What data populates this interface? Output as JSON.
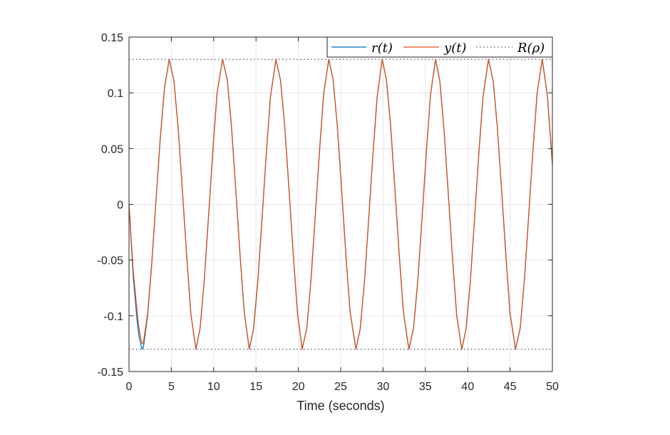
{
  "chart_data": {
    "type": "line",
    "title": "",
    "xlabel": "Time (seconds)",
    "ylabel": "",
    "xlim": [
      0,
      50
    ],
    "ylim": [
      -0.15,
      0.15
    ],
    "x_ticks": [
      0,
      5,
      10,
      15,
      20,
      25,
      30,
      35,
      40,
      45,
      50
    ],
    "x_tick_labels": [
      "0",
      "5",
      "10",
      "15",
      "20",
      "25",
      "30",
      "35",
      "40",
      "45",
      "50"
    ],
    "y_ticks": [
      0.15,
      0.1,
      0.05,
      0,
      -0.05,
      -0.1,
      -0.15
    ],
    "y_tick_labels": [
      "0.15",
      "0.1",
      "0.05",
      "0",
      "-0.05",
      "-0.1",
      "-0.15"
    ],
    "grid": true,
    "legend_position": "top-right",
    "series": [
      {
        "name": "r(t)",
        "color": "#0072BD",
        "style": "solid",
        "x": [
          0,
          0.5,
          1.0,
          1.2,
          1.4,
          1.55,
          1.7,
          2.2,
          2.7,
          3.2,
          3.7,
          4.2,
          4.75,
          5.3,
          5.8,
          6.3,
          6.8,
          7.3,
          7.9,
          8.4,
          8.9,
          9.4,
          9.9,
          10.4,
          11.05,
          11.6,
          12.1,
          12.6,
          13.1,
          13.6,
          14.2,
          14.7,
          15.2,
          15.7,
          16.2,
          16.7,
          17.35,
          17.9,
          18.4,
          18.9,
          19.4,
          19.9,
          20.45,
          21.0,
          21.5,
          22.0,
          22.5,
          23.0,
          23.6,
          24.1,
          24.6,
          25.1,
          25.6,
          26.1,
          26.8,
          27.3,
          27.8,
          28.3,
          28.8,
          29.3,
          29.9,
          30.4,
          30.9,
          31.4,
          31.9,
          32.4,
          33.05,
          33.6,
          34.1,
          34.6,
          35.1,
          35.6,
          36.2,
          36.7,
          37.2,
          37.7,
          38.2,
          38.7,
          39.3,
          39.8,
          40.3,
          40.8,
          41.3,
          41.8,
          42.45,
          43.0,
          43.5,
          44.0,
          44.5,
          45.0,
          45.65,
          46.2,
          46.7,
          47.2,
          47.7,
          48.2,
          48.8,
          49.4,
          50.0
        ],
        "y": [
          0,
          -0.065,
          -0.108,
          -0.119,
          -0.126,
          -0.13,
          -0.128,
          -0.1,
          -0.052,
          0.005,
          0.06,
          0.105,
          0.13,
          0.111,
          0.069,
          0.013,
          -0.045,
          -0.098,
          -0.13,
          -0.111,
          -0.067,
          -0.01,
          0.048,
          0.1,
          0.13,
          0.112,
          0.07,
          0.014,
          -0.044,
          -0.096,
          -0.13,
          -0.112,
          -0.07,
          -0.014,
          0.044,
          0.096,
          0.13,
          0.111,
          0.069,
          0.013,
          -0.045,
          -0.098,
          -0.13,
          -0.111,
          -0.067,
          -0.01,
          0.048,
          0.1,
          0.13,
          0.112,
          0.07,
          0.014,
          -0.044,
          -0.096,
          -0.13,
          -0.112,
          -0.07,
          -0.014,
          0.044,
          0.096,
          0.13,
          0.112,
          0.07,
          0.014,
          -0.044,
          -0.096,
          -0.13,
          -0.111,
          -0.069,
          -0.013,
          0.045,
          0.098,
          0.13,
          0.111,
          0.067,
          0.01,
          -0.048,
          -0.1,
          -0.13,
          -0.112,
          -0.07,
          -0.014,
          0.044,
          0.096,
          0.13,
          0.111,
          0.069,
          0.013,
          -0.045,
          -0.098,
          -0.13,
          -0.111,
          -0.067,
          -0.01,
          0.048,
          0.1,
          0.13,
          0.098,
          0.036
        ]
      },
      {
        "name": "y(t)",
        "color": "#D95319",
        "style": "solid",
        "x": [
          0,
          0.5,
          1.0,
          1.2,
          1.4,
          1.55,
          1.7,
          2.2,
          2.7,
          3.2,
          3.7,
          4.2,
          4.75,
          5.3,
          5.8,
          6.3,
          6.8,
          7.3,
          7.9,
          8.4,
          8.9,
          9.4,
          9.9,
          10.4,
          11.05,
          11.6,
          12.1,
          12.6,
          13.1,
          13.6,
          14.2,
          14.7,
          15.2,
          15.7,
          16.2,
          16.7,
          17.35,
          17.9,
          18.4,
          18.9,
          19.4,
          19.9,
          20.45,
          21.0,
          21.5,
          22.0,
          22.5,
          23.0,
          23.6,
          24.1,
          24.6,
          25.1,
          25.6,
          26.1,
          26.8,
          27.3,
          27.8,
          28.3,
          28.8,
          29.3,
          29.9,
          30.4,
          30.9,
          31.4,
          31.9,
          32.4,
          33.05,
          33.6,
          34.1,
          34.6,
          35.1,
          35.6,
          36.2,
          36.7,
          37.2,
          37.7,
          38.2,
          38.7,
          39.3,
          39.8,
          40.3,
          40.8,
          41.3,
          41.8,
          42.45,
          43.0,
          43.5,
          44.0,
          44.5,
          45.0,
          45.65,
          46.2,
          46.7,
          47.2,
          47.7,
          48.2,
          48.8,
          49.4,
          50.0
        ],
        "y": [
          0,
          -0.06,
          -0.1,
          -0.112,
          -0.121,
          -0.125,
          -0.124,
          -0.098,
          -0.051,
          0.005,
          0.06,
          0.105,
          0.13,
          0.111,
          0.069,
          0.013,
          -0.045,
          -0.098,
          -0.13,
          -0.111,
          -0.067,
          -0.01,
          0.048,
          0.1,
          0.13,
          0.112,
          0.07,
          0.014,
          -0.044,
          -0.096,
          -0.13,
          -0.112,
          -0.07,
          -0.014,
          0.044,
          0.096,
          0.13,
          0.111,
          0.069,
          0.013,
          -0.045,
          -0.098,
          -0.13,
          -0.111,
          -0.067,
          -0.01,
          0.048,
          0.1,
          0.13,
          0.112,
          0.07,
          0.014,
          -0.044,
          -0.096,
          -0.13,
          -0.112,
          -0.07,
          -0.014,
          0.044,
          0.096,
          0.13,
          0.112,
          0.07,
          0.014,
          -0.044,
          -0.096,
          -0.13,
          -0.111,
          -0.069,
          -0.013,
          0.045,
          0.098,
          0.13,
          0.111,
          0.067,
          0.01,
          -0.048,
          -0.1,
          -0.13,
          -0.112,
          -0.07,
          -0.014,
          0.044,
          0.096,
          0.13,
          0.111,
          0.069,
          0.013,
          -0.045,
          -0.098,
          -0.13,
          -0.111,
          -0.067,
          -0.01,
          0.048,
          0.1,
          0.13,
          0.098,
          0.036
        ]
      }
    ],
    "reference_lines": {
      "name": "R(ρ)",
      "color": "#555555",
      "style": "dotted",
      "y_values": [
        0.13,
        -0.13
      ]
    }
  }
}
